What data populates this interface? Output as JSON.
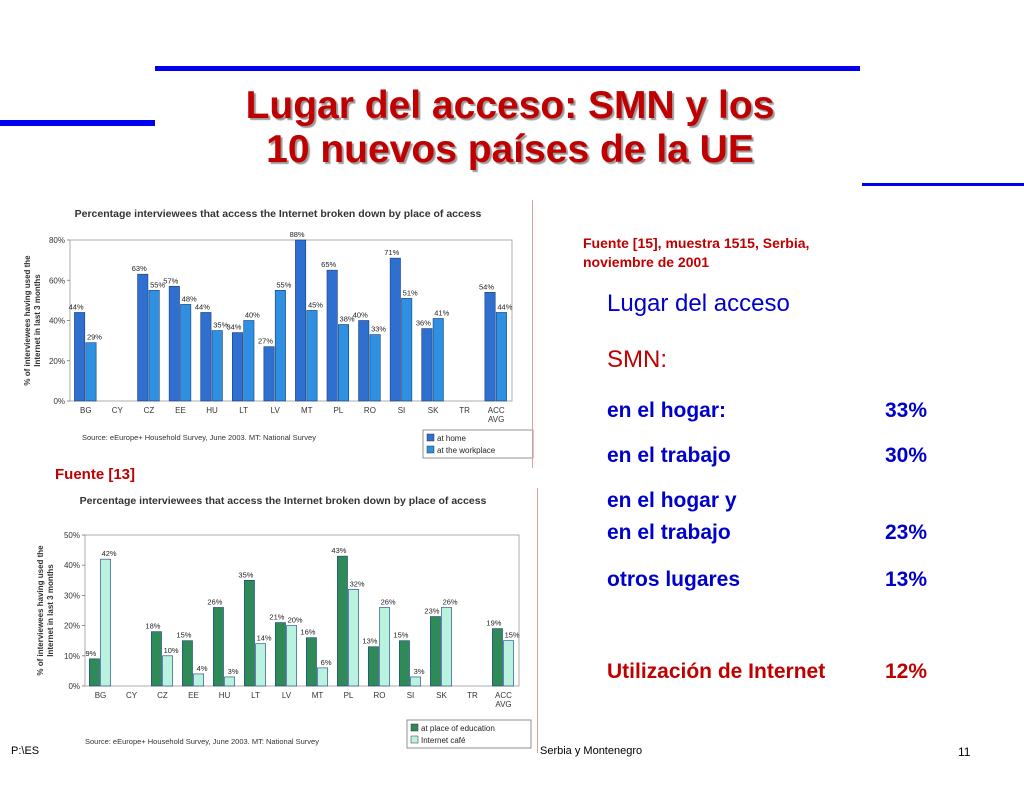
{
  "slide": {
    "title_line1": "Lugar del acceso: SMN y los",
    "title_line2": "10 nuevos países de la UE",
    "source_top": "Fuente [15], muestra 1515, Serbia, noviembre de 2001",
    "source_bottom": "Fuente [13]",
    "footer_left": "P:\\ES",
    "footer_center": "Serbia y Montenegro",
    "page_number": "11",
    "colors": {
      "title": "#c00000",
      "rule": "#0000ee",
      "text": "#0000cc",
      "accent_red": "#c00000"
    }
  },
  "stats": {
    "heading": "Lugar del acceso",
    "subheading": "SMN:",
    "rows": [
      {
        "label": "en el hogar:",
        "value": "33%"
      },
      {
        "label": "en el trabajo",
        "value": "30%"
      },
      {
        "label_line1": "en el hogar y",
        "label_line2": "en el trabajo",
        "value": "23%"
      },
      {
        "label": "otros lugares",
        "value": "13%"
      }
    ],
    "usage": {
      "label": "Utilización de Internet",
      "value": "12%"
    }
  },
  "chart_data": [
    {
      "type": "bar",
      "title": "Percentage interviewees that access the Internet broken down by place of access",
      "ylabel": "% of interviewees having used the Internet in last 3 months",
      "yticks": [
        "0%",
        "20%",
        "40%",
        "60%",
        "80%"
      ],
      "ylim": [
        0,
        80
      ],
      "categories": [
        "BG",
        "CY",
        "CZ",
        "EE",
        "HU",
        "LT",
        "LV",
        "MT",
        "PL",
        "RO",
        "SI",
        "SK",
        "TR",
        "ACC AVG"
      ],
      "series": [
        {
          "name": "at home",
          "color": "#2f6fd0",
          "values": [
            44,
            null,
            63,
            57,
            44,
            34,
            27,
            88,
            65,
            40,
            71,
            36,
            null,
            54
          ],
          "labels": [
            "44%",
            "",
            "63%",
            "57%",
            "44%",
            "34%",
            "27%",
            "88%",
            "65%",
            "40%",
            "71%",
            "36%",
            "",
            "54%"
          ]
        },
        {
          "name": "at the workplace",
          "color": "#2f8fe0",
          "values": [
            29,
            null,
            55,
            48,
            35,
            40,
            55,
            45,
            38,
            33,
            51,
            41,
            null,
            44
          ],
          "labels": [
            "29%",
            "",
            "55%",
            "48%",
            "35%",
            "40%",
            "55%",
            "45%",
            "38%",
            "33%",
            "51%",
            "41%",
            "",
            "44%"
          ]
        }
      ],
      "source": "Source: eEurope+ Household Survey, June 2003. MT: National Survey",
      "grid": false,
      "legend": "bottom-right"
    },
    {
      "type": "bar",
      "title": "Percentage interviewees that access the Internet broken down by place of access",
      "ylabel": "% of interviewees having used the Internet in last 3 months",
      "yticks": [
        "0%",
        "10%",
        "20%",
        "30%",
        "40%",
        "50%"
      ],
      "ylim": [
        0,
        50
      ],
      "categories": [
        "BG",
        "CY",
        "CZ",
        "EE",
        "HU",
        "LT",
        "LV",
        "MT",
        "PL",
        "RO",
        "SI",
        "SK",
        "TR",
        "ACC AVG"
      ],
      "series": [
        {
          "name": "at place of education",
          "color": "#2e8b57",
          "values": [
            9,
            null,
            18,
            15,
            26,
            35,
            21,
            16,
            43,
            13,
            15,
            23,
            null,
            19
          ],
          "labels": [
            "9%",
            "",
            "18%",
            "15%",
            "26%",
            "35%",
            "21%",
            "16%",
            "43%",
            "13%",
            "15%",
            "23%",
            "",
            "19%"
          ]
        },
        {
          "name": "Internet café",
          "color": "#b9f2df",
          "values": [
            42,
            null,
            10,
            4,
            3,
            14,
            20,
            6,
            32,
            26,
            3,
            26,
            null,
            15
          ],
          "labels": [
            "42%",
            "",
            "10%",
            "4%",
            "3%",
            "14%",
            "20%",
            "6%",
            "32%",
            "26%",
            "3%",
            "26%",
            "",
            "15%"
          ]
        }
      ],
      "source": "Source: eEurope+ Household Survey, June 2003. MT: National Survey",
      "grid": false,
      "legend": "bottom-right"
    }
  ]
}
